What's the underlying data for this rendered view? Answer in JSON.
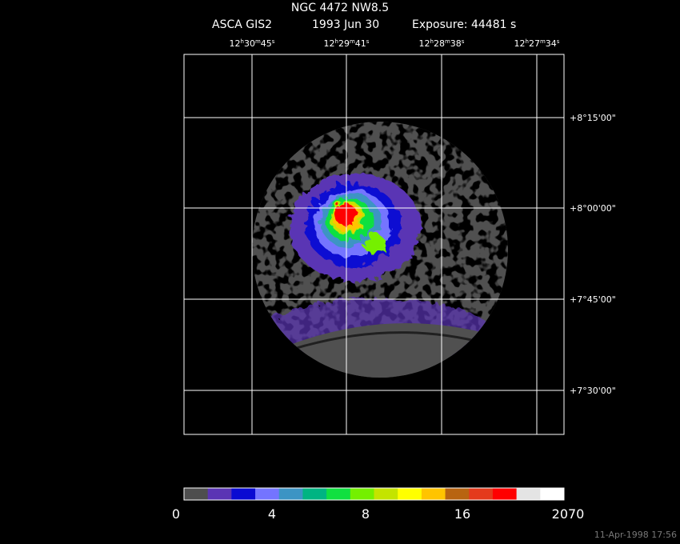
{
  "header": {
    "title": "NGC 4472 NW8.5",
    "instrument": "ASCA GIS2",
    "date": "1993 Jun 30",
    "exposure": "Exposure: 44481 s"
  },
  "ra_labels": [
    [
      "12",
      "h",
      "30",
      "m",
      "45",
      "s"
    ],
    [
      "12",
      "h",
      "29",
      "m",
      "41",
      "s"
    ],
    [
      "12",
      "h",
      "28",
      "m",
      "38",
      "s"
    ],
    [
      "12",
      "h",
      "27",
      "m",
      "34",
      "s"
    ]
  ],
  "dec_labels": [
    "+8°15'00\"",
    "+8°00'00\"",
    "+7°45'00\"",
    "+7°30'00\""
  ],
  "colorbar": {
    "colors": [
      "#4e4e4e",
      "#5a34b4",
      "#0a0ad2",
      "#7474ff",
      "#3c94c4",
      "#00b482",
      "#10e040",
      "#74f000",
      "#c4e400",
      "#ffff00",
      "#ffc400",
      "#b86410",
      "#e43a1c",
      "#ff0000",
      "#e4e4e4",
      "#ffffff"
    ],
    "labels": [
      "0",
      "4",
      "8",
      "16",
      "2070"
    ]
  },
  "footer": {
    "timestamp": "11-Apr-1998 17:56"
  }
}
